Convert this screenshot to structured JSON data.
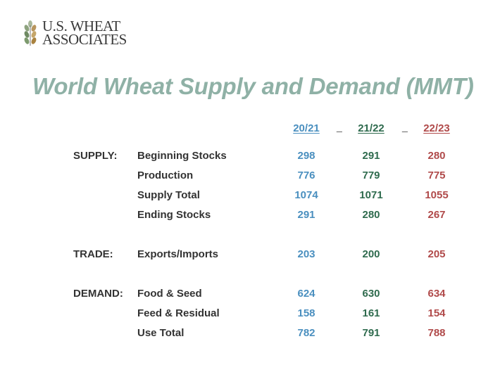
{
  "logo": {
    "line1": "U.S. WHEAT",
    "line2": "ASSOCIATES"
  },
  "title": "World Wheat Supply and Demand (MMT)",
  "columns": [
    "20/21",
    "21/22",
    "22/23"
  ],
  "separator": "_",
  "colors": {
    "col1": "#4a8fbf",
    "col2": "#2f6b4e",
    "col3": "#b04a4a",
    "title": "#8fb1a6"
  },
  "rows": [
    {
      "section": "SUPPLY:",
      "label": "Beginning Stocks",
      "values": [
        "298",
        "291",
        "280"
      ]
    },
    {
      "section": "",
      "label": "Production",
      "values": [
        "776",
        "779",
        "775"
      ]
    },
    {
      "section": "",
      "label": "Supply Total",
      "values": [
        "1074",
        "1071",
        "1055"
      ]
    },
    {
      "section": "",
      "label": "Ending Stocks",
      "values": [
        "291",
        "280",
        "267"
      ]
    },
    {
      "section": "TRADE:",
      "label": "Exports/Imports",
      "values": [
        "203",
        "200",
        "205"
      ]
    },
    {
      "section": "DEMAND:",
      "label": "Food & Seed",
      "values": [
        "624",
        "630",
        "634"
      ]
    },
    {
      "section": "",
      "label": "Feed & Residual",
      "values": [
        "158",
        "161",
        "154"
      ]
    },
    {
      "section": "",
      "label": "Use Total",
      "values": [
        "782",
        "791",
        "788"
      ]
    }
  ]
}
